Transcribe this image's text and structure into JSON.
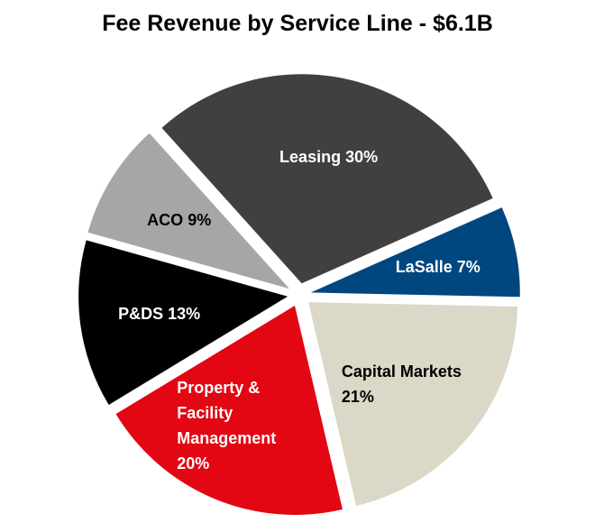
{
  "chart_data": {
    "type": "pie",
    "title": "Fee Revenue by Service Line - $6.1B",
    "categories": [
      "Leasing",
      "LaSalle",
      "Capital Markets",
      "Property & Facility Management",
      "P&DS",
      "ACO"
    ],
    "values": [
      30,
      7,
      21,
      20,
      13,
      9
    ],
    "value_labels": [
      "30%",
      "7%",
      "21%",
      "20%",
      "13%",
      "9%"
    ],
    "colors": [
      "#404040",
      "#00467f",
      "#dcd8c8",
      "#e30613",
      "#000000",
      "#a6a6a6"
    ]
  }
}
